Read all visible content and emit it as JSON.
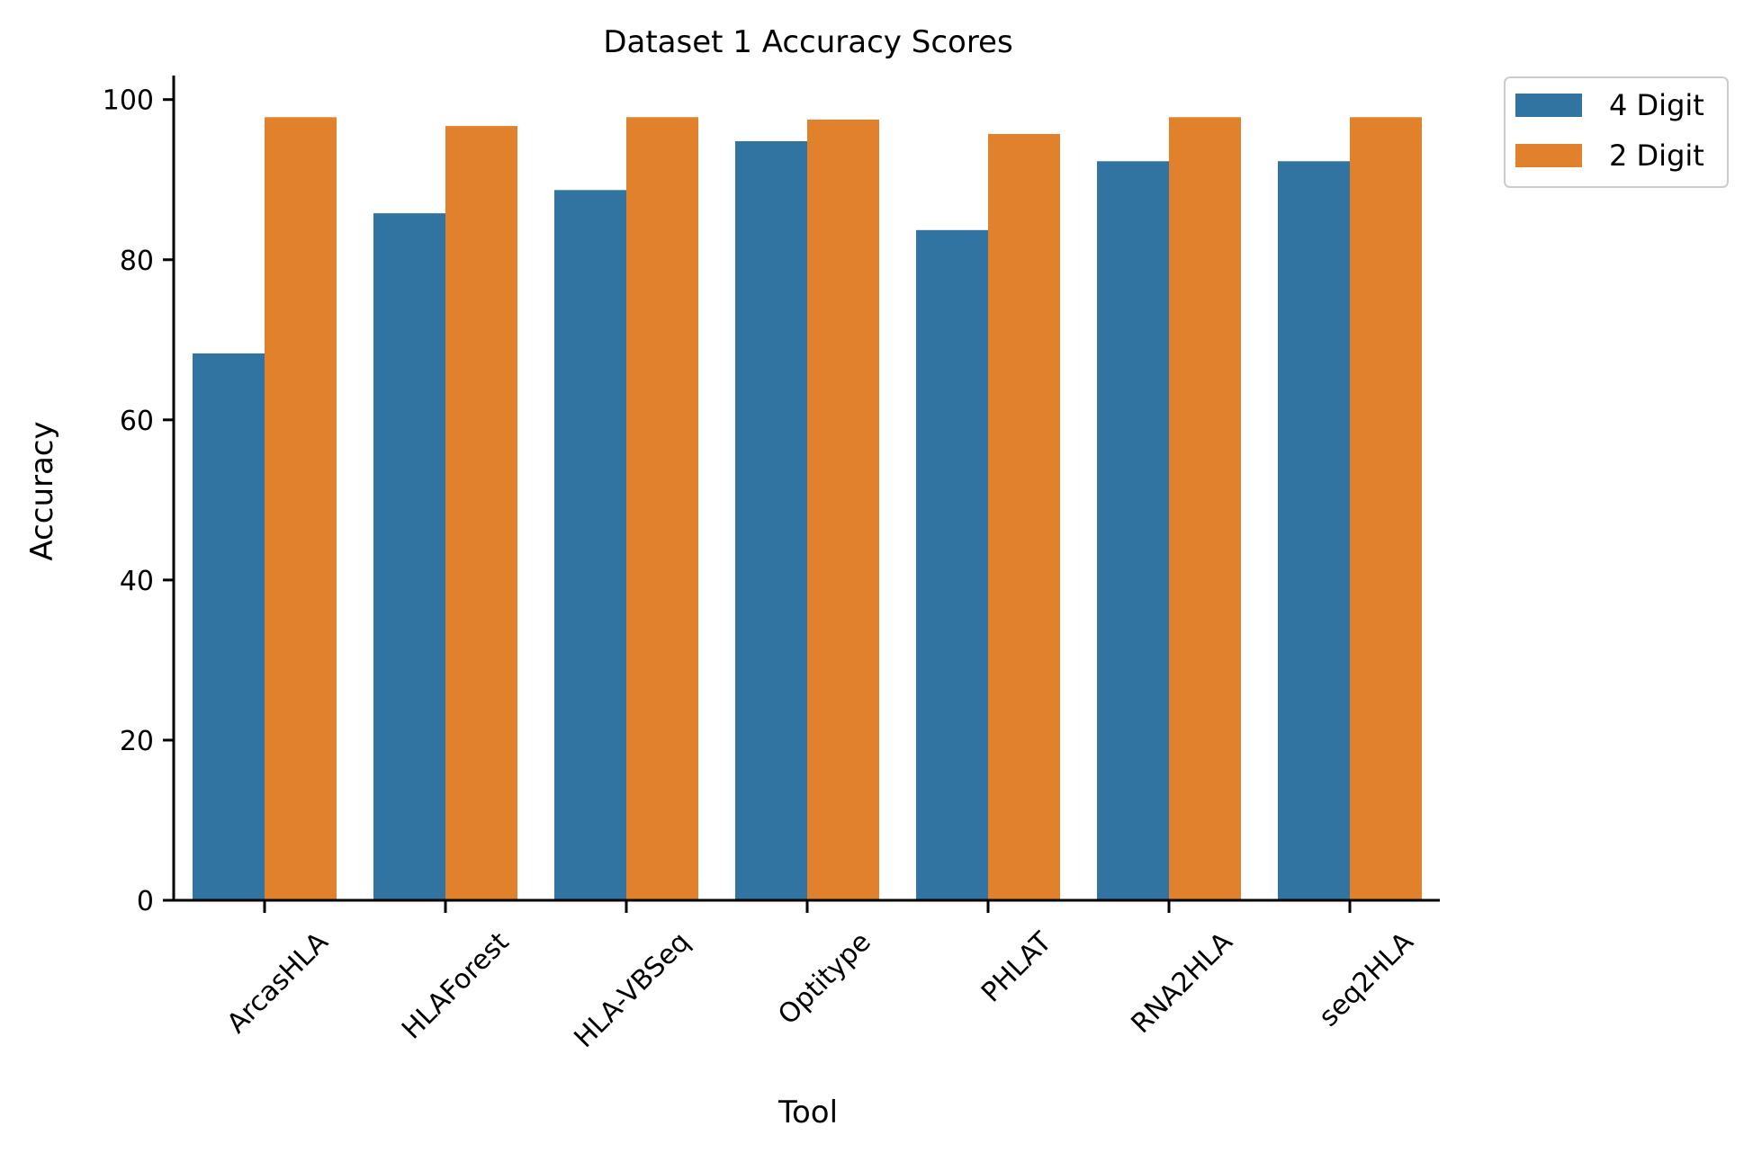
{
  "chart_data": {
    "type": "bar",
    "title": "Dataset 1 Accuracy Scores",
    "xlabel": "Tool",
    "ylabel": "Accuracy",
    "categories": [
      "ArcasHLA",
      "HLAForest",
      "HLA-VBSeq",
      "Optitype",
      "PHLAT",
      "RNA2HLA",
      "seq2HLA"
    ],
    "series": [
      {
        "name": "4 Digit",
        "color": "#3274a1",
        "values": [
          68.3,
          85.8,
          88.7,
          94.8,
          83.7,
          92.3,
          92.3
        ]
      },
      {
        "name": "2 Digit",
        "color": "#e1812c",
        "values": [
          97.8,
          96.7,
          97.8,
          97.5,
          95.7,
          97.8,
          97.8
        ]
      }
    ],
    "ylim": [
      0,
      103
    ],
    "yticks": [
      0,
      20,
      40,
      60,
      80,
      100
    ],
    "grid": false,
    "legend_position": "outside-top-right"
  }
}
